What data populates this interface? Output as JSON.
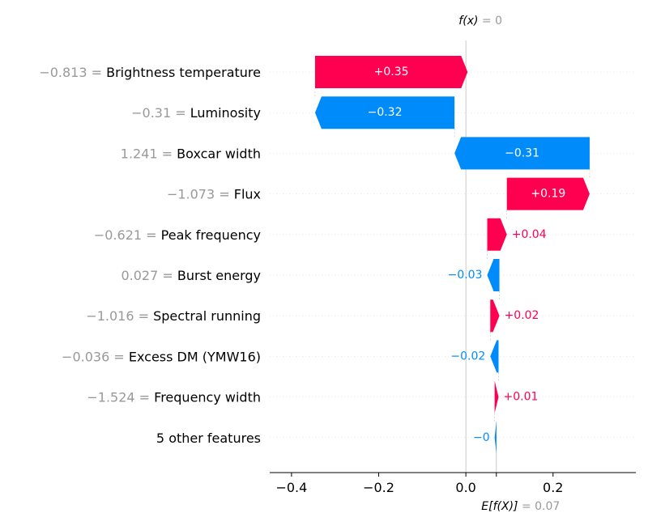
{
  "chart_data": {
    "type": "waterfall",
    "title": "",
    "fx_label": "f(x)",
    "fx_value_text": " = 0",
    "fx_value": 0,
    "base_label": "E[f(X)]",
    "base_value_text": " = 0.07",
    "base_value": 0.07,
    "xlim": [
      -0.45,
      0.39
    ],
    "xticks": [
      {
        "value": -0.4,
        "label": "−0.4"
      },
      {
        "value": -0.2,
        "label": "−0.2"
      },
      {
        "value": 0.0,
        "label": "0.0"
      },
      {
        "value": 0.2,
        "label": "0.2"
      }
    ],
    "features": [
      {
        "value_text": "−0.813",
        "name": "Brightness temperature",
        "contribution": 0.35,
        "label": "+0.35"
      },
      {
        "value_text": "−0.31",
        "name": "Luminosity",
        "contribution": -0.32,
        "label": "−0.32"
      },
      {
        "value_text": "1.241",
        "name": "Boxcar width",
        "contribution": -0.31,
        "label": "−0.31"
      },
      {
        "value_text": "−1.073",
        "name": "Flux",
        "contribution": 0.19,
        "label": "+0.19"
      },
      {
        "value_text": "−0.621",
        "name": "Peak frequency",
        "contribution": 0.045,
        "label": "+0.04"
      },
      {
        "value_text": "0.027",
        "name": "Burst energy",
        "contribution": -0.028,
        "label": "−0.03"
      },
      {
        "value_text": "−1.016",
        "name": "Spectral running",
        "contribution": 0.021,
        "label": "+0.02"
      },
      {
        "value_text": "−0.036",
        "name": "Excess DM (YMW16)",
        "contribution": -0.019,
        "label": "−0.02"
      },
      {
        "value_text": "−1.524",
        "name": "Frequency width",
        "contribution": 0.009,
        "label": "+0.01"
      },
      {
        "value_text": "",
        "name": "5 other features",
        "contribution": -0.004,
        "label": "−0"
      }
    ],
    "colors": {
      "positive": "#ff0051",
      "negative": "#008bfb",
      "grid": "#cccccc",
      "muted_text": "#999999"
    }
  }
}
